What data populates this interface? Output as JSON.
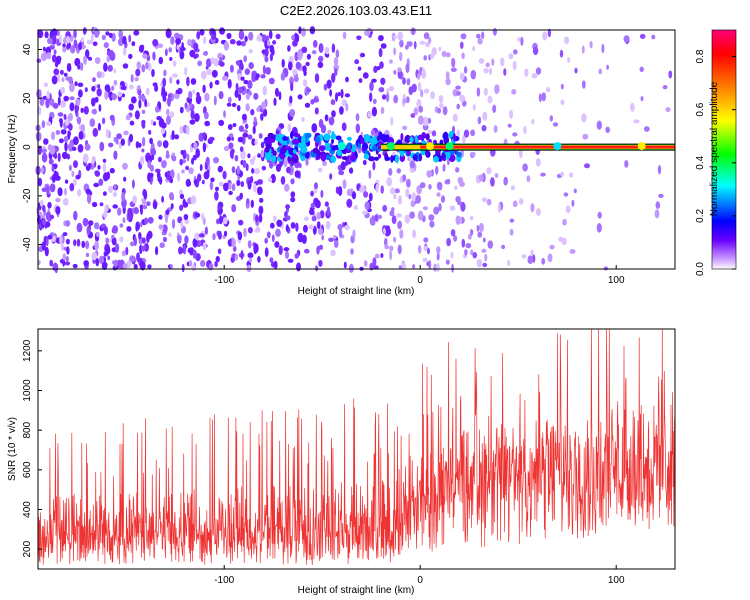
{
  "title": "C2E2.2026.103.03.43.E11",
  "chart_data": [
    {
      "type": "heatmap",
      "xlabel": "Height of straight line (km)",
      "ylabel": "Frequency (Hz)",
      "xlim": [
        -195,
        130
      ],
      "ylim": [
        -50,
        48
      ],
      "xticks": [
        -100,
        0,
        100
      ],
      "yticks": [
        -40,
        -20,
        0,
        20,
        40
      ],
      "colorbar_label": "Normalized spectral amplitude",
      "colorbar_range": [
        0,
        0.9
      ],
      "colorbar_ticks": [
        0.0,
        0.2,
        0.4,
        0.6,
        0.8
      ],
      "colormap_stops": [
        "#ffffff",
        "#6a00ff",
        "#0000ff",
        "#00ffff",
        "#00ff00",
        "#ffff00",
        "#ff7f00",
        "#ff0000",
        "#ff00aa"
      ],
      "series": [
        {
          "name": "dominant frequency line",
          "frequency_hz": 0,
          "x_start": -20,
          "x_end": 130,
          "amplitude": 0.85
        },
        {
          "name": "scattered noise",
          "amplitude_range": [
            0.05,
            0.25
          ],
          "density_decreasing_with_height": true
        }
      ]
    },
    {
      "type": "line",
      "xlabel": "Height of straight line (km)",
      "ylabel": "SNR (10 * v/v)",
      "xlim": [
        -195,
        130
      ],
      "ylim": [
        100,
        1310
      ],
      "xticks": [
        -100,
        0,
        100
      ],
      "yticks": [
        200,
        400,
        600,
        800,
        1000,
        1200
      ],
      "color": "#ef3333",
      "envelope": [
        {
          "x": -195,
          "low": 120,
          "mid": 300,
          "high": 640
        },
        {
          "x": -100,
          "low": 120,
          "mid": 310,
          "high": 680
        },
        {
          "x": -20,
          "low": 120,
          "mid": 330,
          "high": 760
        },
        {
          "x": 0,
          "low": 160,
          "mid": 460,
          "high": 930
        },
        {
          "x": 20,
          "low": 200,
          "mid": 580,
          "high": 1000
        },
        {
          "x": 60,
          "low": 220,
          "mid": 620,
          "high": 1050
        },
        {
          "x": 100,
          "low": 260,
          "mid": 660,
          "high": 1200
        },
        {
          "x": 130,
          "low": 300,
          "mid": 680,
          "high": 1150
        }
      ]
    }
  ]
}
